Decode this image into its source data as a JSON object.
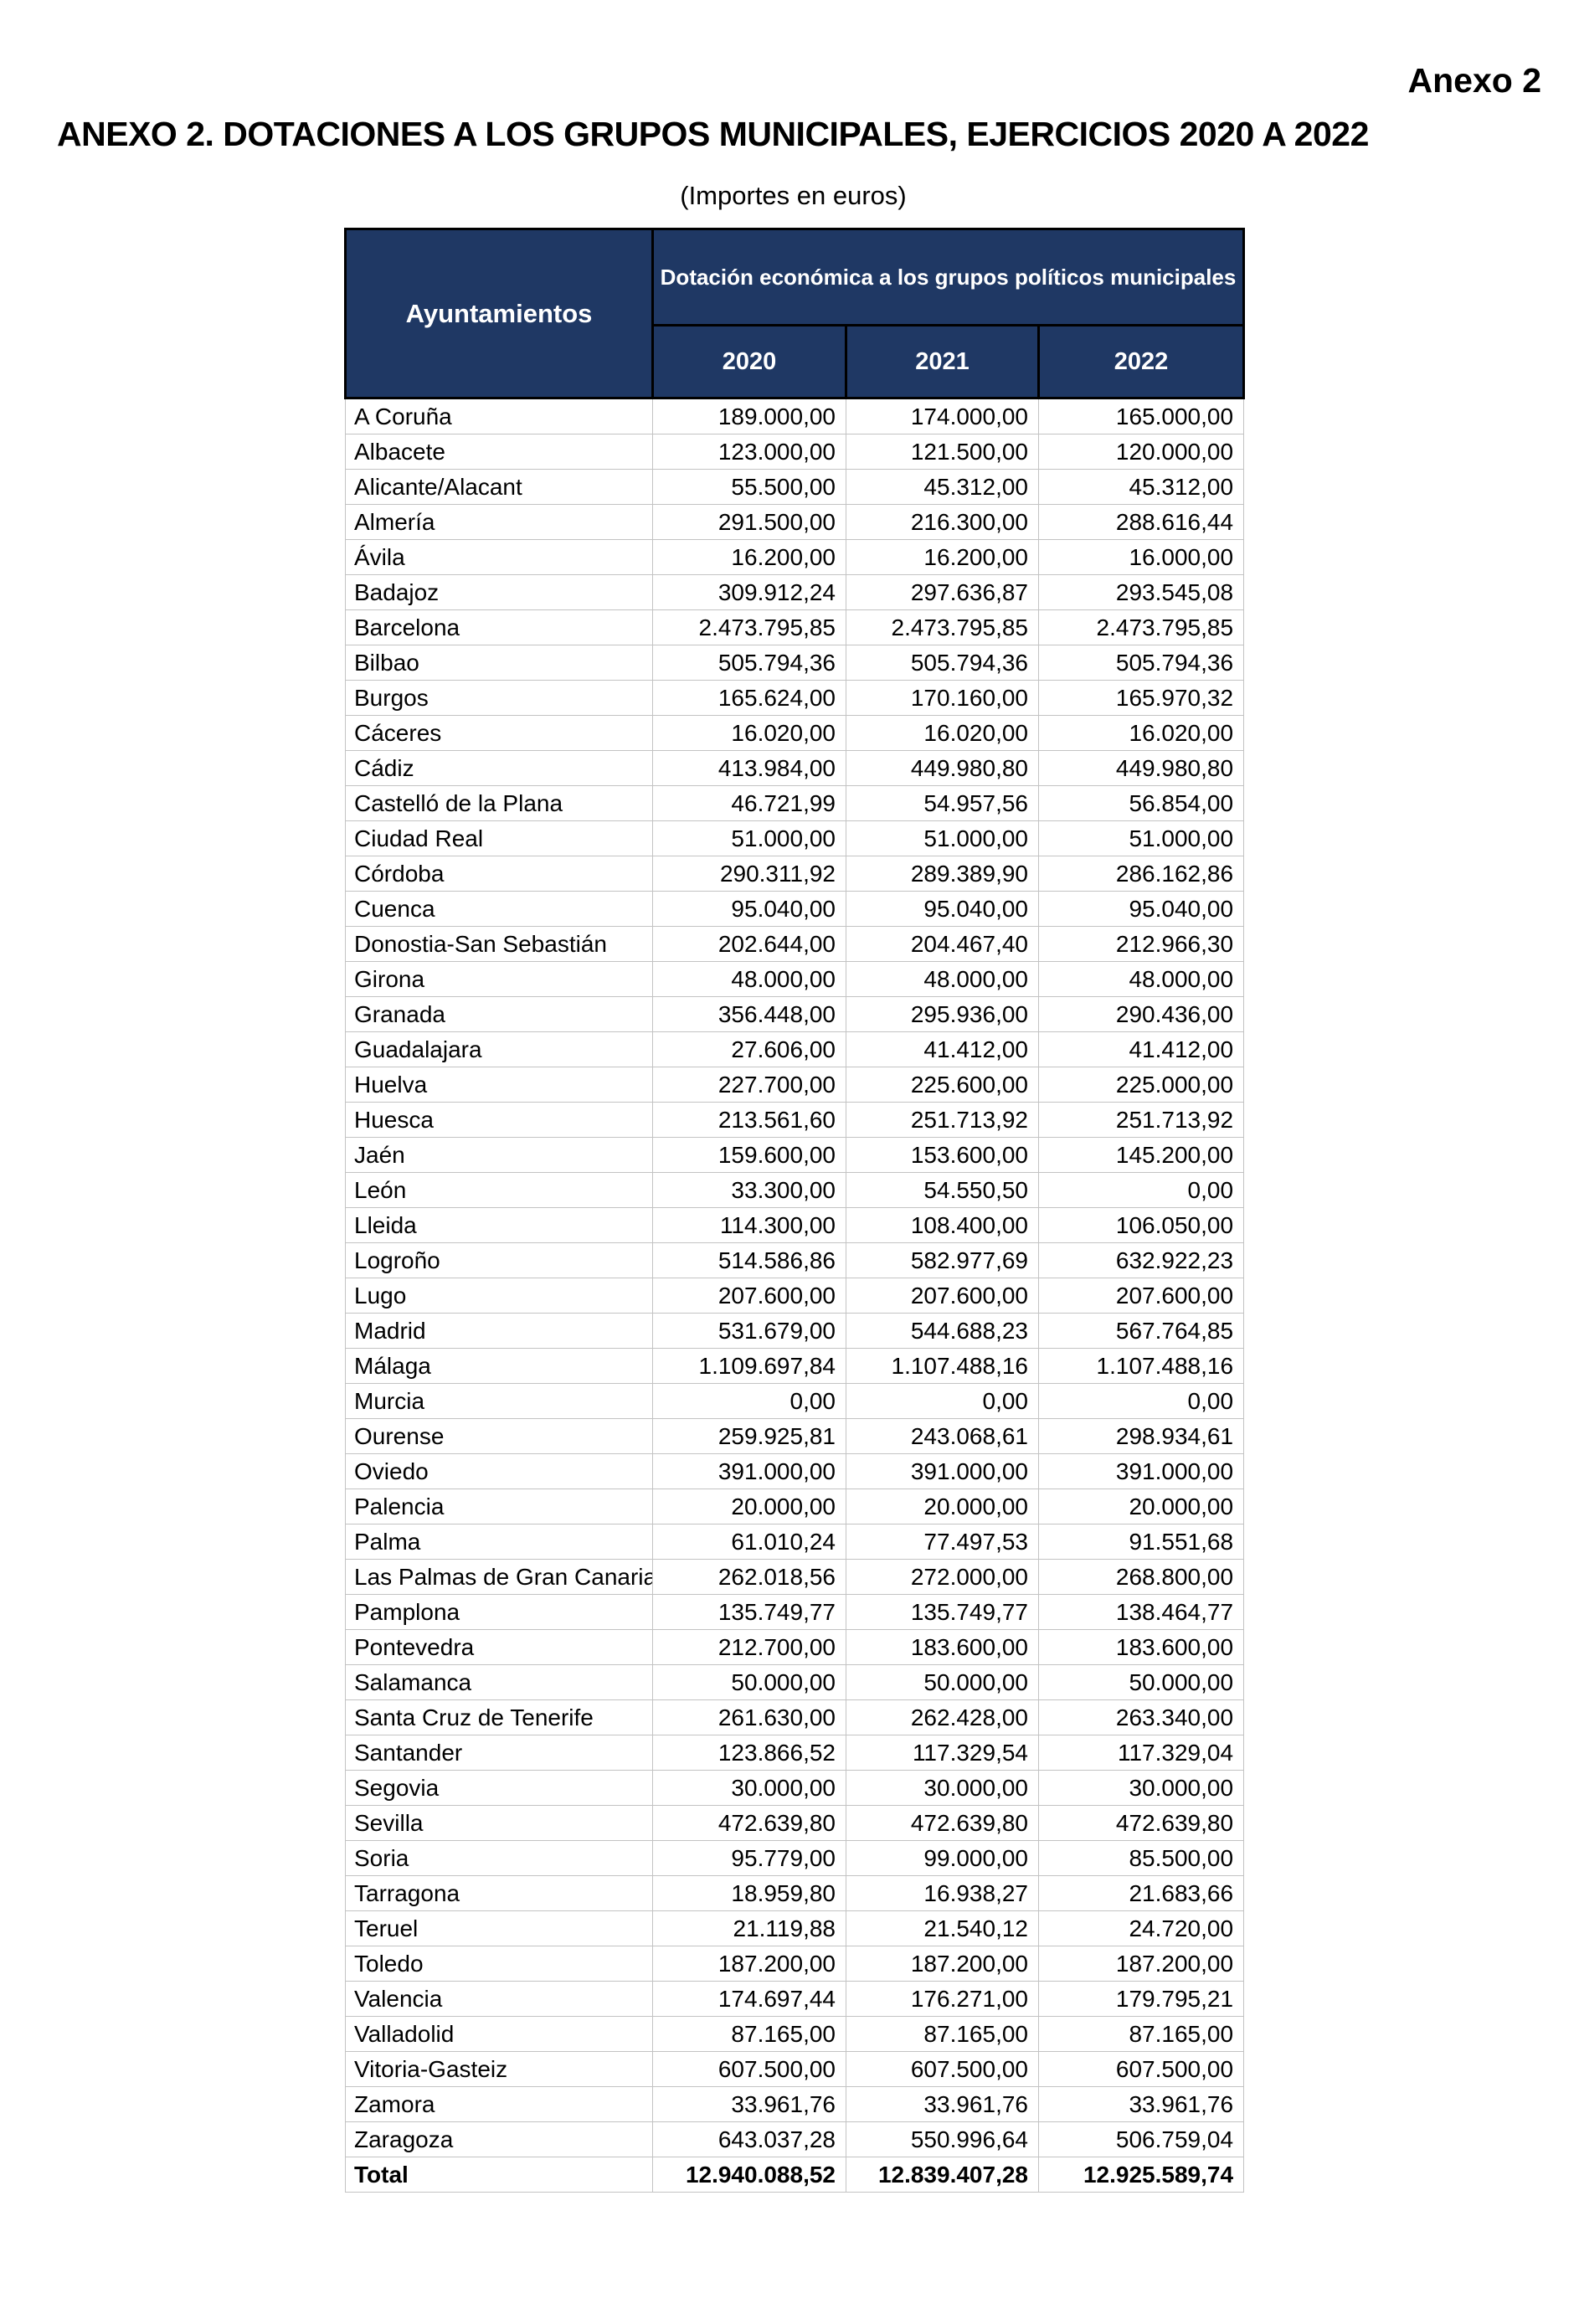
{
  "page": {
    "corner_label": "Anexo 2",
    "title": "ANEXO 2. DOTACIONES A LOS GRUPOS MUNICIPALES, EJERCICIOS 2020 A 2022",
    "subtitle": "(Importes en euros)"
  },
  "colors": {
    "header_bg": "#1f3864",
    "header_text": "#ffffff",
    "header_border": "#000000",
    "body_border": "#c3c3c3"
  },
  "table": {
    "col_header_left": "Ayuntamientos",
    "col_group_header": "Dotación económica a los grupos políticos municipales",
    "year_headers": [
      "2020",
      "2021",
      "2022"
    ],
    "rows": [
      {
        "name": "A Coruña",
        "values": [
          "189.000,00",
          "174.000,00",
          "165.000,00"
        ]
      },
      {
        "name": "Albacete",
        "values": [
          "123.000,00",
          "121.500,00",
          "120.000,00"
        ]
      },
      {
        "name": "Alicante/Alacant",
        "values": [
          "55.500,00",
          "45.312,00",
          "45.312,00"
        ]
      },
      {
        "name": "Almería",
        "values": [
          "291.500,00",
          "216.300,00",
          "288.616,44"
        ]
      },
      {
        "name": "Ávila",
        "values": [
          "16.200,00",
          "16.200,00",
          "16.000,00"
        ]
      },
      {
        "name": "Badajoz",
        "values": [
          "309.912,24",
          "297.636,87",
          "293.545,08"
        ]
      },
      {
        "name": "Barcelona",
        "values": [
          "2.473.795,85",
          "2.473.795,85",
          "2.473.795,85"
        ]
      },
      {
        "name": "Bilbao",
        "values": [
          "505.794,36",
          "505.794,36",
          "505.794,36"
        ]
      },
      {
        "name": "Burgos",
        "values": [
          "165.624,00",
          "170.160,00",
          "165.970,32"
        ]
      },
      {
        "name": "Cáceres",
        "values": [
          "16.020,00",
          "16.020,00",
          "16.020,00"
        ]
      },
      {
        "name": "Cádiz",
        "values": [
          "413.984,00",
          "449.980,80",
          "449.980,80"
        ]
      },
      {
        "name": "Castelló de la Plana",
        "values": [
          "46.721,99",
          "54.957,56",
          "56.854,00"
        ]
      },
      {
        "name": "Ciudad Real",
        "values": [
          "51.000,00",
          "51.000,00",
          "51.000,00"
        ]
      },
      {
        "name": "Córdoba",
        "values": [
          "290.311,92",
          "289.389,90",
          "286.162,86"
        ]
      },
      {
        "name": "Cuenca",
        "values": [
          "95.040,00",
          "95.040,00",
          "95.040,00"
        ]
      },
      {
        "name": "Donostia-San Sebastián",
        "values": [
          "202.644,00",
          "204.467,40",
          "212.966,30"
        ]
      },
      {
        "name": "Girona",
        "values": [
          "48.000,00",
          "48.000,00",
          "48.000,00"
        ]
      },
      {
        "name": "Granada",
        "values": [
          "356.448,00",
          "295.936,00",
          "290.436,00"
        ]
      },
      {
        "name": "Guadalajara",
        "values": [
          "27.606,00",
          "41.412,00",
          "41.412,00"
        ]
      },
      {
        "name": "Huelva",
        "values": [
          "227.700,00",
          "225.600,00",
          "225.000,00"
        ]
      },
      {
        "name": "Huesca",
        "values": [
          "213.561,60",
          "251.713,92",
          "251.713,92"
        ]
      },
      {
        "name": "Jaén",
        "values": [
          "159.600,00",
          "153.600,00",
          "145.200,00"
        ]
      },
      {
        "name": "León",
        "values": [
          "33.300,00",
          "54.550,50",
          "0,00"
        ]
      },
      {
        "name": "Lleida",
        "values": [
          "114.300,00",
          "108.400,00",
          "106.050,00"
        ]
      },
      {
        "name": "Logroño",
        "values": [
          "514.586,86",
          "582.977,69",
          "632.922,23"
        ]
      },
      {
        "name": "Lugo",
        "values": [
          "207.600,00",
          "207.600,00",
          "207.600,00"
        ]
      },
      {
        "name": "Madrid",
        "values": [
          "531.679,00",
          "544.688,23",
          "567.764,85"
        ]
      },
      {
        "name": "Málaga",
        "values": [
          "1.109.697,84",
          "1.107.488,16",
          "1.107.488,16"
        ]
      },
      {
        "name": "Murcia",
        "values": [
          "0,00",
          "0,00",
          "0,00"
        ]
      },
      {
        "name": "Ourense",
        "values": [
          "259.925,81",
          "243.068,61",
          "298.934,61"
        ]
      },
      {
        "name": "Oviedo",
        "values": [
          "391.000,00",
          "391.000,00",
          "391.000,00"
        ]
      },
      {
        "name": "Palencia",
        "values": [
          "20.000,00",
          "20.000,00",
          "20.000,00"
        ]
      },
      {
        "name": "Palma",
        "values": [
          "61.010,24",
          "77.497,53",
          "91.551,68"
        ]
      },
      {
        "name": "Las Palmas de Gran Canaria",
        "values": [
          "262.018,56",
          "272.000,00",
          "268.800,00"
        ]
      },
      {
        "name": "Pamplona",
        "values": [
          "135.749,77",
          "135.749,77",
          "138.464,77"
        ]
      },
      {
        "name": "Pontevedra",
        "values": [
          "212.700,00",
          "183.600,00",
          "183.600,00"
        ]
      },
      {
        "name": "Salamanca",
        "values": [
          "50.000,00",
          "50.000,00",
          "50.000,00"
        ]
      },
      {
        "name": "Santa Cruz de Tenerife",
        "values": [
          "261.630,00",
          "262.428,00",
          "263.340,00"
        ]
      },
      {
        "name": "Santander",
        "values": [
          "123.866,52",
          "117.329,54",
          "117.329,04"
        ]
      },
      {
        "name": "Segovia",
        "values": [
          "30.000,00",
          "30.000,00",
          "30.000,00"
        ]
      },
      {
        "name": "Sevilla",
        "values": [
          "472.639,80",
          "472.639,80",
          "472.639,80"
        ]
      },
      {
        "name": "Soria",
        "values": [
          "95.779,00",
          "99.000,00",
          "85.500,00"
        ]
      },
      {
        "name": "Tarragona",
        "values": [
          "18.959,80",
          "16.938,27",
          "21.683,66"
        ]
      },
      {
        "name": "Teruel",
        "values": [
          "21.119,88",
          "21.540,12",
          "24.720,00"
        ]
      },
      {
        "name": "Toledo",
        "values": [
          "187.200,00",
          "187.200,00",
          "187.200,00"
        ]
      },
      {
        "name": "Valencia",
        "values": [
          "174.697,44",
          "176.271,00",
          "179.795,21"
        ]
      },
      {
        "name": "Valladolid",
        "values": [
          "87.165,00",
          "87.165,00",
          "87.165,00"
        ]
      },
      {
        "name": "Vitoria-Gasteiz",
        "values": [
          "607.500,00",
          "607.500,00",
          "607.500,00"
        ]
      },
      {
        "name": "Zamora",
        "values": [
          "33.961,76",
          "33.961,76",
          "33.961,76"
        ]
      },
      {
        "name": "Zaragoza",
        "values": [
          "643.037,28",
          "550.996,64",
          "506.759,04"
        ]
      }
    ],
    "total": {
      "name": "Total",
      "values": [
        "12.940.088,52",
        "12.839.407,28",
        "12.925.589,74"
      ]
    }
  }
}
